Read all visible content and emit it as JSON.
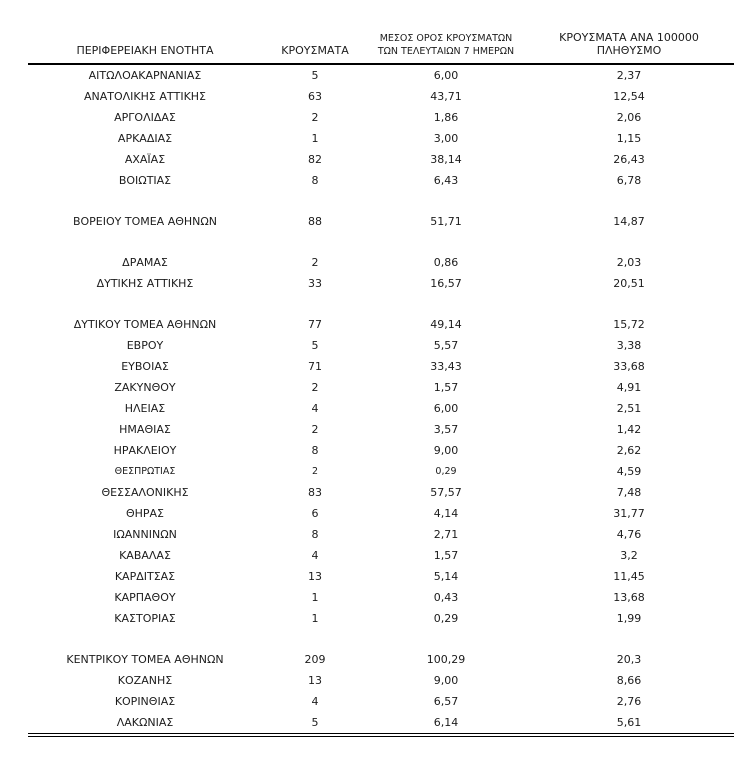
{
  "table": {
    "columns": [
      {
        "label": "ΠΕΡΙΦΕΡΕΙΑΚΗ ΕΝΟΤΗΤΑ"
      },
      {
        "label": "ΚΡΟΥΣΜΑΤΑ"
      },
      {
        "label": "ΜΕΣΟΣ ΟΡΟΣ ΚΡΟΥΣΜΑΤΩΝ ΤΩΝ ΤΕΛΕΥΤΑΙΩΝ 7 ΗΜΕΡΩΝ",
        "line1": "ΜΕΣΟΣ ΟΡΟΣ ΚΡΟΥΣΜΑΤΩΝ",
        "line2": "ΤΩΝ ΤΕΛΕΥΤΑΙΩΝ 7 ΗΜΕΡΩΝ"
      },
      {
        "label": "ΚΡΟΥΣΜΑΤΑ ΑΝΑ 100000 ΠΛΗΘΥΣΜΟ",
        "line1": "ΚΡΟΥΣΜΑΤΑ ΑΝΑ 100000",
        "line2": "ΠΛΗΘΥΣΜΟ"
      }
    ],
    "rows": [
      {
        "region": "ΑΙΤΩΛΟΑΚΑΡΝΑΝΙΑΣ",
        "cases": "5",
        "avg7": "6,00",
        "per100k": "2,37"
      },
      {
        "region": "ΑΝΑΤΟΛΙΚΗΣ ΑΤΤΙΚΗΣ",
        "cases": "63",
        "avg7": "43,71",
        "per100k": "12,54"
      },
      {
        "region": "ΑΡΓΟΛΙΔΑΣ",
        "cases": "2",
        "avg7": "1,86",
        "per100k": "2,06"
      },
      {
        "region": "ΑΡΚΑΔΙΑΣ",
        "cases": "1",
        "avg7": "3,00",
        "per100k": "1,15"
      },
      {
        "region": "ΑΧΑΪΑΣ",
        "cases": "82",
        "avg7": "38,14",
        "per100k": "26,43"
      },
      {
        "region": "ΒΟΙΩΤΙΑΣ",
        "cases": "8",
        "avg7": "6,43",
        "per100k": "6,78"
      },
      {
        "blank": true
      },
      {
        "region": "ΒΟΡΕΙΟΥ ΤΟΜΕΑ ΑΘΗΝΩΝ",
        "cases": "88",
        "avg7": "51,71",
        "per100k": "14,87"
      },
      {
        "blank": true
      },
      {
        "region": "ΔΡΑΜΑΣ",
        "cases": "2",
        "avg7": "0,86",
        "per100k": "2,03"
      },
      {
        "region": "ΔΥΤΙΚΗΣ ΑΤΤΙΚΗΣ",
        "cases": "33",
        "avg7": "16,57",
        "per100k": "20,51"
      },
      {
        "blank": true
      },
      {
        "region": "ΔΥΤΙΚΟΥ ΤΟΜΕΑ ΑΘΗΝΩΝ",
        "cases": "77",
        "avg7": "49,14",
        "per100k": "15,72"
      },
      {
        "region": "ΕΒΡΟΥ",
        "cases": "5",
        "avg7": "5,57",
        "per100k": "3,38"
      },
      {
        "region": "ΕΥΒΟΙΑΣ",
        "cases": "71",
        "avg7": "33,43",
        "per100k": "33,68"
      },
      {
        "region": "ΖΑΚΥΝΘΟΥ",
        "cases": "2",
        "avg7": "1,57",
        "per100k": "4,91"
      },
      {
        "region": "ΗΛΕΙΑΣ",
        "cases": "4",
        "avg7": "6,00",
        "per100k": "2,51"
      },
      {
        "region": "ΗΜΑΘΙΑΣ",
        "cases": "2",
        "avg7": "3,57",
        "per100k": "1,42"
      },
      {
        "region": "ΗΡΑΚΛΕΙΟΥ",
        "cases": "8",
        "avg7": "9,00",
        "per100k": "2,62"
      },
      {
        "region": "ΘΕΣΠΡΩΤΙΑΣ",
        "cases": "2",
        "avg7": "0,29",
        "per100k": "4,59",
        "small_text": true
      },
      {
        "region": "ΘΕΣΣΑΛΟΝΙΚΗΣ",
        "cases": "83",
        "avg7": "57,57",
        "per100k": "7,48"
      },
      {
        "region": "ΘΗΡΑΣ",
        "cases": "6",
        "avg7": "4,14",
        "per100k": "31,77"
      },
      {
        "region": "ΙΩΑΝΝΙΝΩΝ",
        "cases": "8",
        "avg7": "2,71",
        "per100k": "4,76"
      },
      {
        "region": "ΚΑΒΑΛΑΣ",
        "cases": "4",
        "avg7": "1,57",
        "per100k": "3,2"
      },
      {
        "region": "ΚΑΡΔΙΤΣΑΣ",
        "cases": "13",
        "avg7": "5,14",
        "per100k": "11,45"
      },
      {
        "region": "ΚΑΡΠΑΘΟΥ",
        "cases": "1",
        "avg7": "0,43",
        "per100k": "13,68"
      },
      {
        "region": "ΚΑΣΤΟΡΙΑΣ",
        "cases": "1",
        "avg7": "0,29",
        "per100k": "1,99"
      },
      {
        "blank": true
      },
      {
        "region": "ΚΕΝΤΡΙΚΟΥ ΤΟΜΕΑ ΑΘΗΝΩΝ",
        "cases": "209",
        "avg7": "100,29",
        "per100k": "20,3"
      },
      {
        "region": "ΚΟΖΑΝΗΣ",
        "cases": "13",
        "avg7": "9,00",
        "per100k": "8,66"
      },
      {
        "region": "ΚΟΡΙΝΘΙΑΣ",
        "cases": "4",
        "avg7": "6,57",
        "per100k": "2,76"
      },
      {
        "region": "ΛΑΚΩΝΙΑΣ",
        "cases": "5",
        "avg7": "6,14",
        "per100k": "5,61"
      }
    ],
    "colors": {
      "text": "#1c1c1c",
      "rule": "#000000",
      "background": "#ffffff"
    }
  }
}
